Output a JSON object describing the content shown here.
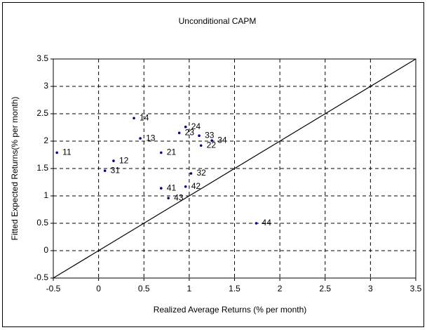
{
  "chart_data": {
    "type": "scatter",
    "title": "Unconditional CAPM",
    "x_label": "Realized Average Returns (% per month)",
    "y_label": "Fitted Expected Returns(% per month)",
    "x": [
      -0.46,
      0.165,
      0.07,
      0.46,
      0.39,
      0.69,
      0.69,
      0.77,
      0.96,
      1.02,
      0.89,
      0.96,
      1.11,
      1.13,
      1.25,
      1.74
    ],
    "values": [
      1.79,
      1.64,
      1.46,
      2.05,
      2.42,
      1.79,
      1.14,
      0.96,
      1.17,
      1.41,
      2.15,
      2.26,
      2.1,
      1.92,
      2.01,
      0.5
    ],
    "labels": [
      "11",
      "12",
      "31",
      "13",
      "14",
      "21",
      "41",
      "43",
      "42",
      "32",
      "23",
      "24",
      "33",
      "22",
      "34",
      "44"
    ],
    "color": "#000080",
    "xlim": [
      -0.5,
      3.5
    ],
    "xticks": [
      -0.5,
      0,
      0.5,
      1,
      1.5,
      2,
      2.5,
      3,
      3.5
    ],
    "ylim": [
      -0.5,
      3.5
    ],
    "yticks": [
      -0.5,
      0,
      0.5,
      1,
      1.5,
      2,
      2.5,
      3,
      3.5
    ],
    "grid": true
  }
}
